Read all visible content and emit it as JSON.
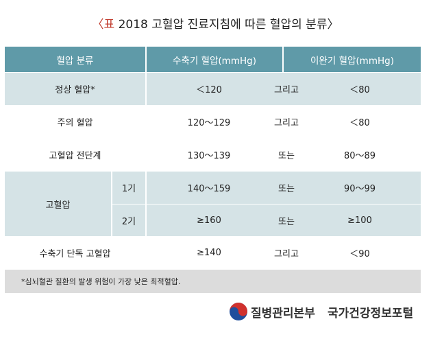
{
  "title": {
    "label": "표",
    "text": "2018 고혈압 진료지침에 따른 혈압의 분류"
  },
  "table": {
    "header": [
      "혈압 분류",
      "수축기 혈압(mmHg)",
      "이완기 혈압(mmHg)"
    ],
    "rows": [
      {
        "category": "정상 혈압*",
        "systolic": "＜120",
        "conjunction": "그리고",
        "diastolic": "＜80"
      },
      {
        "category": "주의 혈압",
        "systolic": "120～129",
        "conjunction": "그리고",
        "diastolic": "＜80"
      },
      {
        "category": "고혈압 전단계",
        "systolic": "130～139",
        "conjunction": "또는",
        "diastolic": "80～89"
      },
      {
        "category": "고혈압",
        "stage": "1기",
        "systolic": "140～159",
        "conjunction": "또는",
        "diastolic": "90～99"
      },
      {
        "stage": "2기",
        "systolic": "≥160",
        "conjunction": "또는",
        "diastolic": "≥100"
      },
      {
        "category": "수축기 단독 고혈압",
        "systolic": "≥140",
        "conjunction": "그리고",
        "diastolic": "＜90"
      }
    ]
  },
  "footnote": "*심뇌혈관 질환의 발생 위험이 가장 낮은 최적혈압.",
  "footer": {
    "organization": "질병관리본부",
    "portal": "국가건강정보포털"
  }
}
